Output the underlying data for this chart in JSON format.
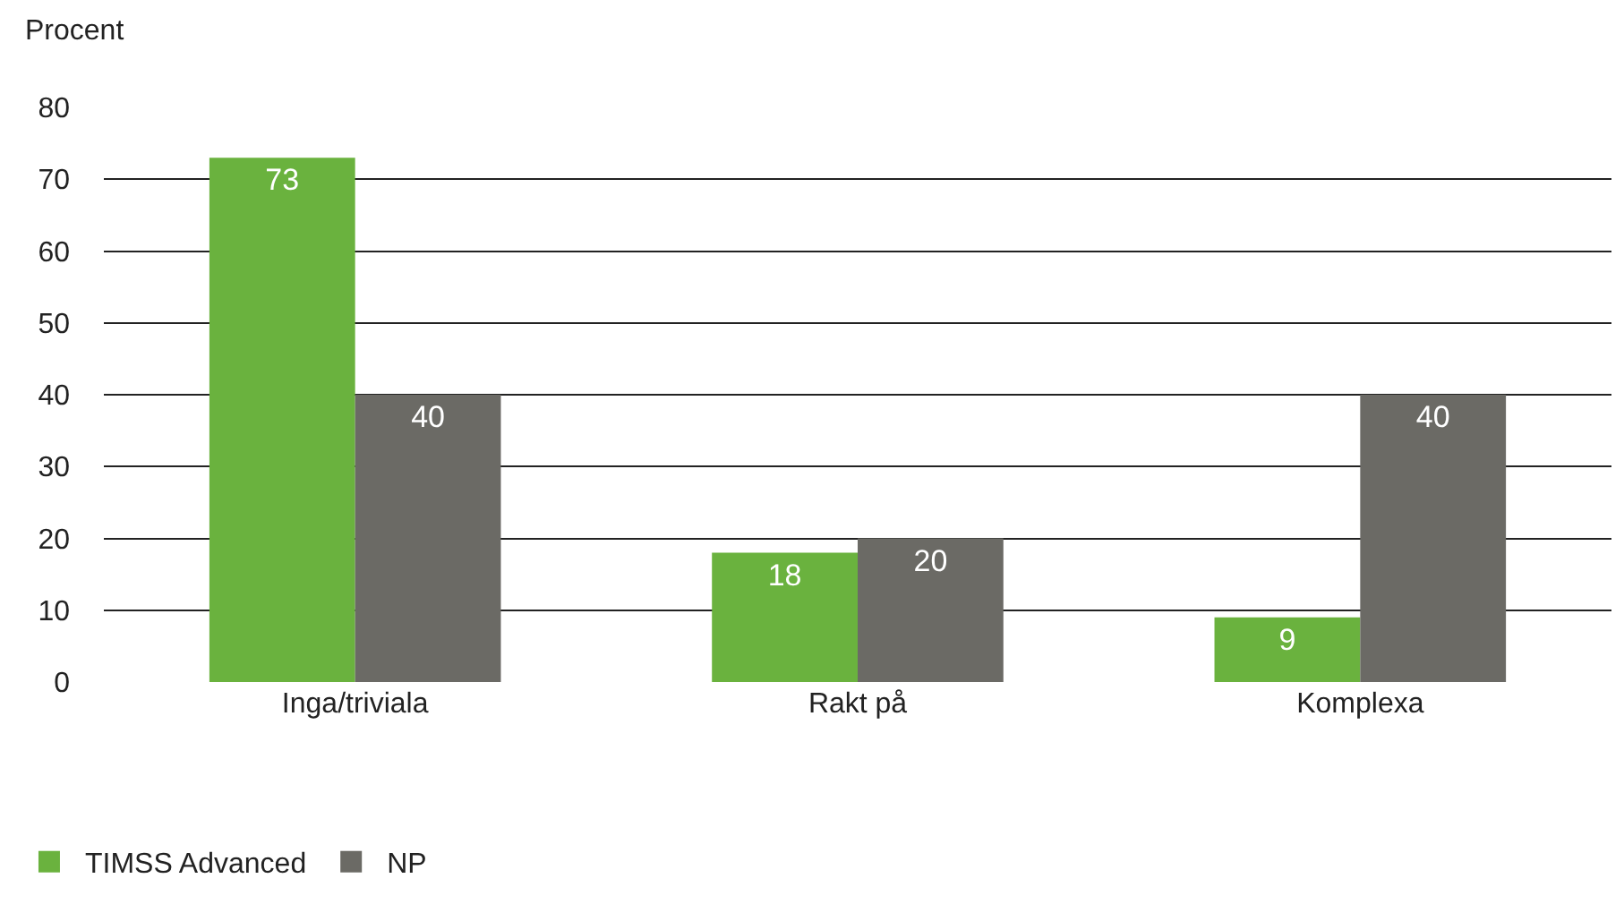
{
  "chart_data": {
    "type": "bar",
    "ylabel": "Procent",
    "categories": [
      "Inga/triviala",
      "Rakt på",
      "Komplexa"
    ],
    "series": [
      {
        "name": "TIMSS Advanced",
        "color": "#6ab23e",
        "values": [
          73,
          18,
          9
        ]
      },
      {
        "name": "NP",
        "color": "#6b6a65",
        "values": [
          40,
          20,
          40
        ]
      }
    ],
    "ylim": [
      0,
      80
    ],
    "yticks": [
      0,
      10,
      20,
      30,
      40,
      50,
      60,
      70,
      80
    ],
    "grid": "y",
    "legend": "bottom left",
    "data_labels": true
  }
}
